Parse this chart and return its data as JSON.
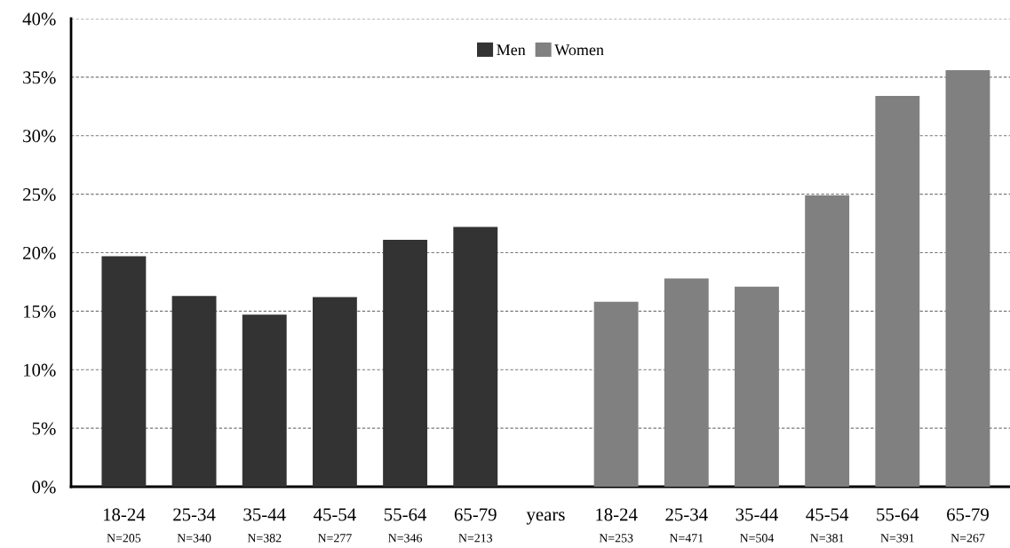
{
  "chart_data": {
    "type": "bar",
    "categories": [
      "18-24\nN=205",
      "25-34\nN=340",
      "35-44\nN=382",
      "45-54\nN=277",
      "55-64\nN=346",
      "65-79\nN=213",
      "years",
      "18-24\nN=253",
      "25-34\nN=471",
      "35-44\nN=504",
      "45-54\nN=381",
      "55-64\nN=391",
      "65-79\nN=267"
    ],
    "series": [
      {
        "name": "Men",
        "color": "#333333",
        "values": [
          19.7,
          16.3,
          14.7,
          16.2,
          21.1,
          22.2,
          null,
          null,
          null,
          null,
          null,
          null,
          null
        ]
      },
      {
        "name": "Women",
        "color": "#808080",
        "values": [
          null,
          null,
          null,
          null,
          null,
          null,
          null,
          15.8,
          17.8,
          17.1,
          24.9,
          33.4,
          35.6
        ]
      }
    ],
    "ylim": [
      0,
      40
    ],
    "yticks": [
      {
        "value": 0,
        "label": "0%"
      },
      {
        "value": 5,
        "label": "5%"
      },
      {
        "value": 10,
        "label": "10%"
      },
      {
        "value": 15,
        "label": "15%"
      },
      {
        "value": 20,
        "label": "20%"
      },
      {
        "value": 25,
        "label": "25%"
      },
      {
        "value": 30,
        "label": "30%"
      },
      {
        "value": 35,
        "label": "35%"
      },
      {
        "value": 40,
        "label": "40%"
      }
    ],
    "grid": "y",
    "legend": "top"
  }
}
